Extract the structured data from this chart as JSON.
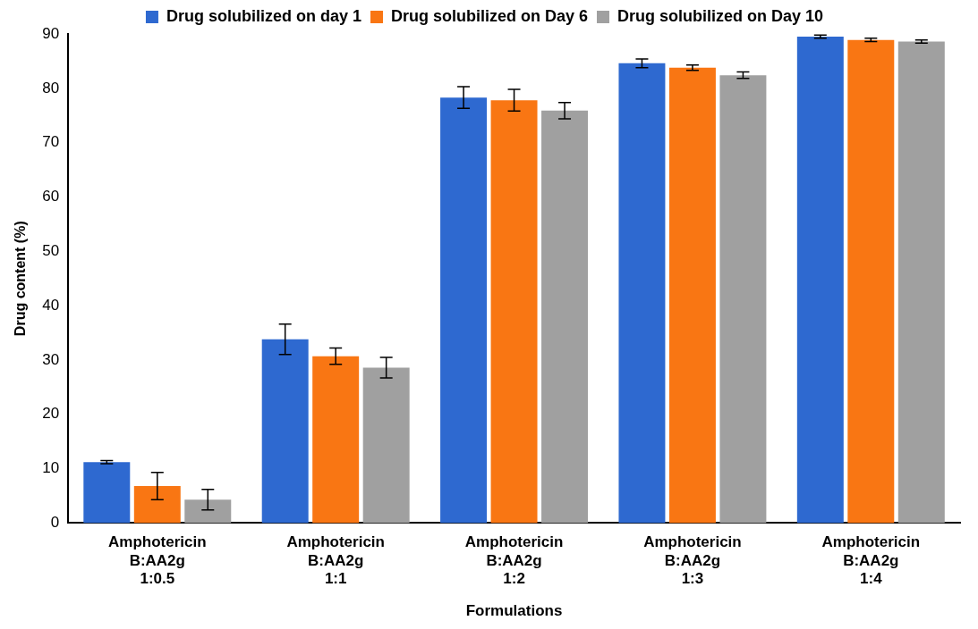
{
  "chart_data": {
    "type": "bar",
    "xlabel": "Formulations",
    "ylabel": "Drug content (%)",
    "categories": [
      "Amphotericin\nB:AA2g\n1:0.5",
      "Amphotericin\nB:AA2g\n1:1",
      "Amphotericin\nB:AA2g\n1:2",
      "Amphotericin\nB:AA2g\n1:3",
      "Amphotericin\nB:AA2g\n1:4"
    ],
    "series": [
      {
        "name": "Drug solubilized on day 1",
        "color": "#2e69d0",
        "values": [
          11.2,
          33.8,
          78.3,
          84.6,
          89.5
        ],
        "errors": [
          0.3,
          2.8,
          2,
          0.8,
          0.3
        ]
      },
      {
        "name": "Drug solubilized on Day 6",
        "color": "#f97613",
        "values": [
          6.8,
          30.7,
          77.8,
          83.8,
          88.9
        ],
        "errors": [
          2.5,
          1.5,
          2,
          0.5,
          0.3
        ]
      },
      {
        "name": "Drug solubilized on Day 10",
        "color": "#a0a0a0",
        "values": [
          4.3,
          28.6,
          75.9,
          82.4,
          88.6
        ],
        "errors": [
          1.9,
          1.9,
          1.5,
          0.6,
          0.3
        ]
      }
    ],
    "ylim": [
      0,
      90
    ],
    "yticks": [
      0,
      10,
      20,
      30,
      40,
      50,
      60,
      70,
      80,
      90
    ],
    "grid": false,
    "legend": "top"
  }
}
